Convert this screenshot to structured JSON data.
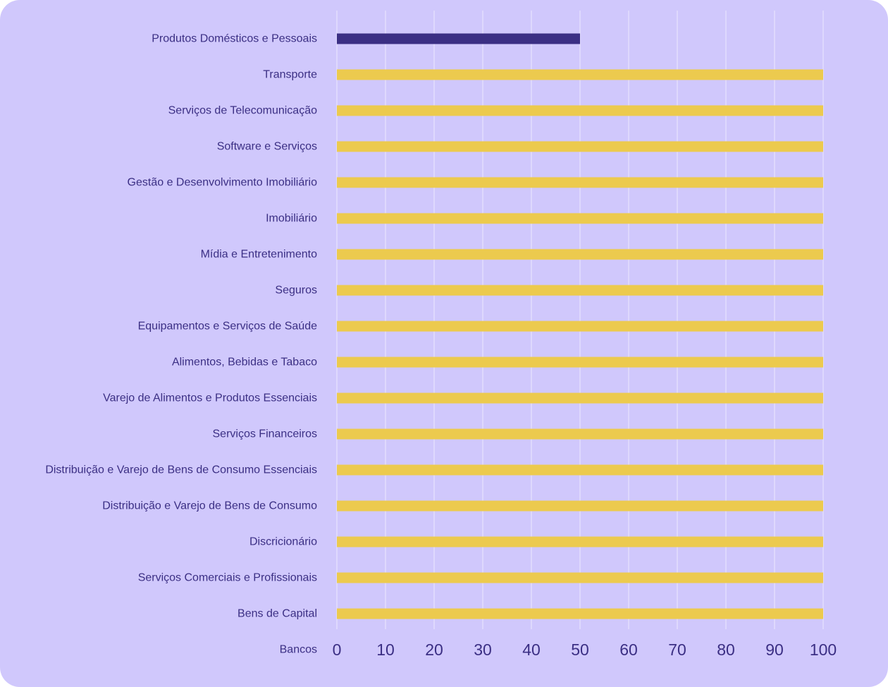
{
  "colors": {
    "background": "#d0c8fc",
    "grid": "#e3ddfd",
    "highlight_bar": "#3b2f84",
    "bar": "#ecca4e",
    "text": "#3b2f84"
  },
  "chart_data": {
    "type": "bar",
    "orientation": "horizontal",
    "categories": [
      "Produtos Domésticos e Pessoais",
      "Transporte",
      "Serviços de Telecomunicação",
      "Software e Serviços",
      "Gestão e Desenvolvimento Imobiliário",
      "Imobiliário",
      "Mídia e Entretenimento",
      "Seguros",
      "Equipamentos e Serviços de Saúde",
      "Alimentos, Bebidas e Tabaco",
      "Varejo de Alimentos e Produtos Essenciais",
      "Serviços Financeiros",
      "Distribuição e Varejo de Bens de Consumo Essenciais",
      "Distribuição e Varejo de Bens de Consumo",
      "Discricionário",
      "Serviços Comerciais e Profissionais",
      "Bens de Capital",
      "Bancos"
    ],
    "values": [
      50,
      100,
      100,
      100,
      100,
      100,
      100,
      100,
      100,
      100,
      100,
      100,
      100,
      100,
      100,
      100,
      100,
      0
    ],
    "highlight_index": 0,
    "xlim": [
      0,
      100
    ],
    "xticks": [
      0,
      10,
      20,
      30,
      40,
      50,
      60,
      70,
      80,
      90,
      100
    ],
    "grid": true,
    "legend": "none",
    "title": "",
    "xlabel": "",
    "ylabel": ""
  }
}
